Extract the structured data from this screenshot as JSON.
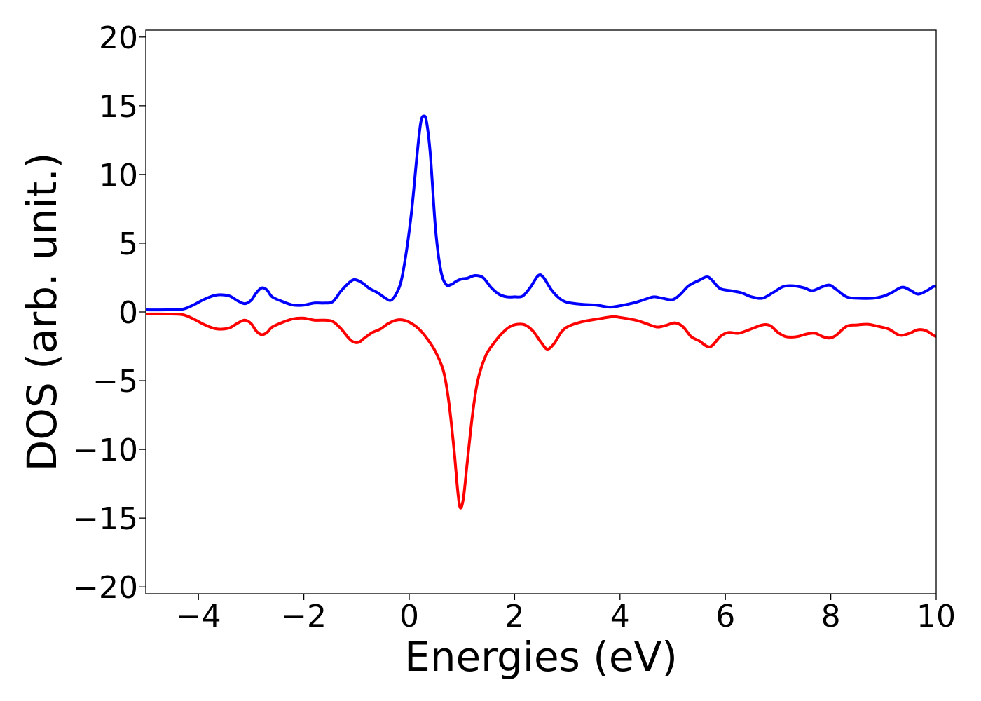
{
  "chart_data": {
    "type": "line",
    "xlabel": "Energies (eV)",
    "ylabel": "DOS (arb. unit.)",
    "xlim": [
      -5,
      10
    ],
    "ylim": [
      -20.5,
      20.5
    ],
    "xticks": [
      -4,
      -2,
      0,
      2,
      4,
      6,
      8,
      10
    ],
    "xtick_labels": [
      "−4",
      "−2",
      "0",
      "2",
      "4",
      "6",
      "8",
      "10"
    ],
    "yticks": [
      20,
      15,
      10,
      5,
      0,
      -5,
      -10,
      -15,
      -20
    ],
    "ytick_labels": [
      "20",
      "15",
      "10",
      "5",
      "0",
      "−5",
      "−10",
      "−15",
      "−20"
    ],
    "grid": false,
    "legend": "none",
    "series": [
      {
        "color": "#0000ff",
        "points": [
          [
            -5.0,
            0.15
          ],
          [
            -4.6,
            0.15
          ],
          [
            -4.3,
            0.2
          ],
          [
            -4.1,
            0.5
          ],
          [
            -3.9,
            0.9
          ],
          [
            -3.7,
            1.2
          ],
          [
            -3.55,
            1.25
          ],
          [
            -3.4,
            1.15
          ],
          [
            -3.25,
            0.8
          ],
          [
            -3.12,
            0.6
          ],
          [
            -3.0,
            0.85
          ],
          [
            -2.9,
            1.4
          ],
          [
            -2.8,
            1.75
          ],
          [
            -2.7,
            1.6
          ],
          [
            -2.6,
            1.1
          ],
          [
            -2.4,
            0.75
          ],
          [
            -2.2,
            0.5
          ],
          [
            -2.0,
            0.5
          ],
          [
            -1.8,
            0.65
          ],
          [
            -1.6,
            0.65
          ],
          [
            -1.45,
            0.75
          ],
          [
            -1.3,
            1.5
          ],
          [
            -1.15,
            2.1
          ],
          [
            -1.05,
            2.35
          ],
          [
            -0.95,
            2.25
          ],
          [
            -0.85,
            2.0
          ],
          [
            -0.75,
            1.7
          ],
          [
            -0.6,
            1.4
          ],
          [
            -0.45,
            1.0
          ],
          [
            -0.35,
            0.85
          ],
          [
            -0.25,
            1.3
          ],
          [
            -0.15,
            2.3
          ],
          [
            -0.05,
            4.5
          ],
          [
            0.05,
            7.5
          ],
          [
            0.15,
            11.5
          ],
          [
            0.22,
            13.8
          ],
          [
            0.28,
            14.25
          ],
          [
            0.33,
            13.8
          ],
          [
            0.4,
            11.5
          ],
          [
            0.5,
            6.0
          ],
          [
            0.6,
            3.0
          ],
          [
            0.7,
            2.0
          ],
          [
            0.8,
            2.0
          ],
          [
            0.9,
            2.25
          ],
          [
            1.0,
            2.4
          ],
          [
            1.1,
            2.45
          ],
          [
            1.25,
            2.65
          ],
          [
            1.4,
            2.5
          ],
          [
            1.55,
            1.8
          ],
          [
            1.7,
            1.3
          ],
          [
            1.85,
            1.1
          ],
          [
            2.0,
            1.1
          ],
          [
            2.15,
            1.15
          ],
          [
            2.3,
            1.8
          ],
          [
            2.45,
            2.65
          ],
          [
            2.55,
            2.5
          ],
          [
            2.7,
            1.6
          ],
          [
            2.85,
            1.0
          ],
          [
            3.0,
            0.7
          ],
          [
            3.3,
            0.55
          ],
          [
            3.55,
            0.5
          ],
          [
            3.8,
            0.35
          ],
          [
            4.0,
            0.45
          ],
          [
            4.3,
            0.7
          ],
          [
            4.5,
            0.95
          ],
          [
            4.65,
            1.1
          ],
          [
            4.8,
            1.0
          ],
          [
            5.0,
            0.9
          ],
          [
            5.15,
            1.3
          ],
          [
            5.3,
            1.9
          ],
          [
            5.5,
            2.3
          ],
          [
            5.65,
            2.55
          ],
          [
            5.75,
            2.3
          ],
          [
            5.9,
            1.7
          ],
          [
            6.1,
            1.55
          ],
          [
            6.3,
            1.4
          ],
          [
            6.5,
            1.1
          ],
          [
            6.7,
            1.0
          ],
          [
            6.9,
            1.4
          ],
          [
            7.1,
            1.85
          ],
          [
            7.3,
            1.9
          ],
          [
            7.5,
            1.75
          ],
          [
            7.65,
            1.55
          ],
          [
            7.85,
            1.85
          ],
          [
            7.98,
            1.95
          ],
          [
            8.1,
            1.65
          ],
          [
            8.3,
            1.1
          ],
          [
            8.5,
            1.0
          ],
          [
            8.8,
            1.0
          ],
          [
            9.0,
            1.15
          ],
          [
            9.15,
            1.4
          ],
          [
            9.35,
            1.8
          ],
          [
            9.5,
            1.6
          ],
          [
            9.65,
            1.3
          ],
          [
            9.8,
            1.5
          ],
          [
            9.95,
            1.85
          ],
          [
            10.0,
            1.85
          ]
        ]
      },
      {
        "color": "#ff0000",
        "points": [
          [
            -5.0,
            -0.15
          ],
          [
            -4.6,
            -0.15
          ],
          [
            -4.3,
            -0.2
          ],
          [
            -4.1,
            -0.5
          ],
          [
            -3.9,
            -0.9
          ],
          [
            -3.7,
            -1.2
          ],
          [
            -3.55,
            -1.25
          ],
          [
            -3.4,
            -1.15
          ],
          [
            -3.25,
            -0.8
          ],
          [
            -3.12,
            -0.6
          ],
          [
            -3.0,
            -0.85
          ],
          [
            -2.9,
            -1.4
          ],
          [
            -2.8,
            -1.65
          ],
          [
            -2.7,
            -1.5
          ],
          [
            -2.6,
            -1.1
          ],
          [
            -2.4,
            -0.75
          ],
          [
            -2.2,
            -0.5
          ],
          [
            -2.0,
            -0.45
          ],
          [
            -1.8,
            -0.6
          ],
          [
            -1.6,
            -0.6
          ],
          [
            -1.45,
            -0.7
          ],
          [
            -1.3,
            -1.2
          ],
          [
            -1.15,
            -1.9
          ],
          [
            -1.05,
            -2.2
          ],
          [
            -0.95,
            -2.2
          ],
          [
            -0.85,
            -1.9
          ],
          [
            -0.7,
            -1.5
          ],
          [
            -0.55,
            -1.25
          ],
          [
            -0.4,
            -0.85
          ],
          [
            -0.25,
            -0.6
          ],
          [
            -0.1,
            -0.6
          ],
          [
            0.05,
            -0.85
          ],
          [
            0.2,
            -1.3
          ],
          [
            0.35,
            -2.0
          ],
          [
            0.5,
            -2.9
          ],
          [
            0.65,
            -4.3
          ],
          [
            0.75,
            -6.5
          ],
          [
            0.85,
            -10.0
          ],
          [
            0.92,
            -13.0
          ],
          [
            0.97,
            -14.25
          ],
          [
            1.03,
            -13.5
          ],
          [
            1.1,
            -11.0
          ],
          [
            1.2,
            -7.5
          ],
          [
            1.3,
            -5.0
          ],
          [
            1.45,
            -3.2
          ],
          [
            1.6,
            -2.3
          ],
          [
            1.75,
            -1.6
          ],
          [
            1.9,
            -1.1
          ],
          [
            2.05,
            -0.9
          ],
          [
            2.2,
            -0.95
          ],
          [
            2.35,
            -1.4
          ],
          [
            2.5,
            -2.2
          ],
          [
            2.62,
            -2.7
          ],
          [
            2.75,
            -2.3
          ],
          [
            2.9,
            -1.4
          ],
          [
            3.05,
            -1.0
          ],
          [
            3.3,
            -0.7
          ],
          [
            3.6,
            -0.5
          ],
          [
            3.85,
            -0.35
          ],
          [
            4.0,
            -0.4
          ],
          [
            4.3,
            -0.6
          ],
          [
            4.5,
            -0.85
          ],
          [
            4.7,
            -1.1
          ],
          [
            4.85,
            -1.0
          ],
          [
            5.05,
            -0.8
          ],
          [
            5.2,
            -1.1
          ],
          [
            5.35,
            -1.8
          ],
          [
            5.5,
            -2.1
          ],
          [
            5.65,
            -2.5
          ],
          [
            5.75,
            -2.45
          ],
          [
            5.9,
            -1.8
          ],
          [
            6.05,
            -1.5
          ],
          [
            6.25,
            -1.55
          ],
          [
            6.45,
            -1.3
          ],
          [
            6.7,
            -0.95
          ],
          [
            6.85,
            -1.0
          ],
          [
            7.0,
            -1.5
          ],
          [
            7.15,
            -1.8
          ],
          [
            7.35,
            -1.8
          ],
          [
            7.55,
            -1.6
          ],
          [
            7.7,
            -1.55
          ],
          [
            7.85,
            -1.8
          ],
          [
            7.98,
            -1.9
          ],
          [
            8.1,
            -1.7
          ],
          [
            8.3,
            -1.05
          ],
          [
            8.5,
            -0.95
          ],
          [
            8.7,
            -0.9
          ],
          [
            8.9,
            -1.05
          ],
          [
            9.1,
            -1.25
          ],
          [
            9.25,
            -1.6
          ],
          [
            9.35,
            -1.7
          ],
          [
            9.5,
            -1.55
          ],
          [
            9.65,
            -1.3
          ],
          [
            9.8,
            -1.35
          ],
          [
            9.95,
            -1.7
          ],
          [
            10.0,
            -1.8
          ]
        ]
      }
    ]
  }
}
